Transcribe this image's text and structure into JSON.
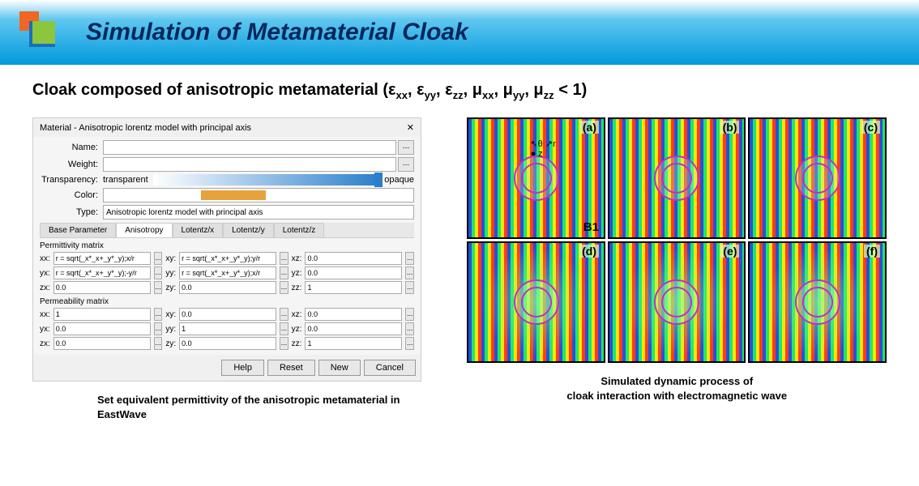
{
  "header": {
    "title": "Simulation of Metamaterial Cloak"
  },
  "subtitle": {
    "prefix": "Cloak composed of anisotropic metamaterial (",
    "params": "ε_xx_, ε_yy_, ε_zz_, μ_xx_, μ_yy_, μ_zz_",
    "suffix": " < 1)"
  },
  "dialog": {
    "title": "Material - Anisotropic lorentz model with principal axis",
    "close": "✕",
    "labels": {
      "name": "Name:",
      "weight": "Weight:",
      "transparency": "Transparency:",
      "transparent": "transparent",
      "opaque": "opaque",
      "color": "Color:",
      "type": "Type:"
    },
    "type_value": "Anisotropic lorentz model with principal axis",
    "tabs": [
      "Base Parameter",
      "Anisotropy",
      "Lotentz/x",
      "Lotentz/y",
      "Lotentz/z"
    ],
    "active_tab": 1,
    "permittivity": {
      "title": "Permittivity matrix",
      "rows": [
        {
          "l1": "xx:",
          "v1": "r = sqrt(_x*_x+_y*_y);x/r",
          "l2": "xy:",
          "v2": "r = sqrt(_x*_x+_y*_y);y/r",
          "l3": "xz:",
          "v3": "0.0"
        },
        {
          "l1": "yx:",
          "v1": "r = sqrt(_x*_x+_y*_y);-y/r",
          "l2": "yy:",
          "v2": "r = sqrt(_x*_x+_y*_y);x/r",
          "l3": "yz:",
          "v3": "0.0"
        },
        {
          "l1": "zx:",
          "v1": "0.0",
          "l2": "zy:",
          "v2": "0.0",
          "l3": "zz:",
          "v3": "1"
        }
      ]
    },
    "permeability": {
      "title": "Permeability matrix",
      "rows": [
        {
          "l1": "xx:",
          "v1": "1",
          "l2": "xy:",
          "v2": "0.0",
          "l3": "xz:",
          "v3": "0.0"
        },
        {
          "l1": "yx:",
          "v1": "0.0",
          "l2": "yy:",
          "v2": "1",
          "l3": "yz:",
          "v3": "0.0"
        },
        {
          "l1": "zx:",
          "v1": "0.0",
          "l2": "zy:",
          "v2": "0.0",
          "l3": "zz:",
          "v3": "1"
        }
      ]
    },
    "buttons": {
      "help": "Help",
      "reset": "Reset",
      "new": "New",
      "cancel": "Cancel"
    },
    "ellipsis": "..."
  },
  "sim": {
    "cells": [
      {
        "label": "(a)",
        "b1": "B1",
        "axes": true
      },
      {
        "label": "(b)"
      },
      {
        "label": "(c)"
      },
      {
        "label": "(d)",
        "scatter": true
      },
      {
        "label": "(e)",
        "scatter": true
      },
      {
        "label": "(f)",
        "scatter": true
      }
    ],
    "axis_labels": {
      "theta": "θ",
      "r": "r",
      "z": "z"
    }
  },
  "captions": {
    "left": "Set equivalent permittivity of the anisotropic metamaterial in EastWave",
    "right": "Simulated dynamic process of\ncloak interaction with electromagnetic wave"
  }
}
